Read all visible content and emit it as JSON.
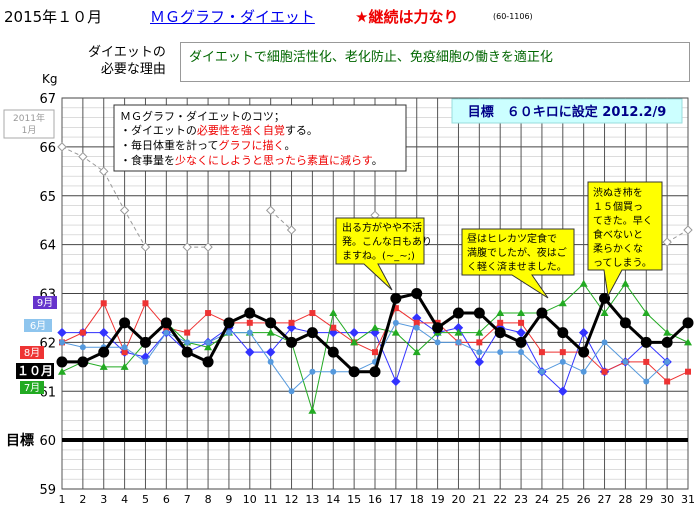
{
  "header": {
    "month_title": "2015年１０月",
    "chart_title": "ＭＧグラフ・ダイエット",
    "motto": "★継続は力なり",
    "code": "(60-1106)"
  },
  "reason": {
    "label_line1": "ダイエットの",
    "label_line2": "必要な理由",
    "text": "ダイエットで細胞活性化、老化防止、免疫細胞の働きを適正化"
  },
  "tips": {
    "title": "ＭＧグラフ・ダイエットのコツ；",
    "line1_pre": "・ダイエットの",
    "line1_em": "必要性を強く自覚",
    "line1_post": "する。",
    "line2_pre": "・毎日体重を計って",
    "line2_em": "グラフに描く",
    "line2_post": "。",
    "line3_pre": "・食事量を",
    "line3_em": "少なくにしようと思ったら素直に減らす",
    "line3_post": "。"
  },
  "goal_banner": "目標　６０キロに設定 2012.2/9",
  "callouts": [
    {
      "lines": [
        "出る方がやや不活",
        "発。こんな日もあり",
        "ますね。(~_~;)"
      ]
    },
    {
      "lines": [
        "昼はヒレカツ定食で",
        "満腹でしたが、夜はご",
        "く軽く済ませました。"
      ]
    },
    {
      "lines": [
        "渋ぬき柿を",
        "１５個買っ",
        "てきた。早く",
        "食べないと",
        "柔らかくな",
        "ってしまう。"
      ]
    }
  ],
  "colors": {
    "current": "#000000",
    "sep": "#3333ff",
    "aug": "#ee3333",
    "jul": "#22aa22",
    "jun": "#5599dd",
    "ref2011": "#999999",
    "goal_banner_bg": "#ccffff",
    "callout_bg": "#ffff00",
    "tip_em": "#ee0000"
  },
  "chart_data": {
    "type": "line",
    "x": [
      1,
      2,
      3,
      4,
      5,
      6,
      7,
      8,
      9,
      10,
      11,
      12,
      13,
      14,
      15,
      16,
      17,
      18,
      19,
      20,
      21,
      22,
      23,
      24,
      25,
      26,
      27,
      28,
      29,
      30,
      31
    ],
    "xlim": [
      1,
      31
    ],
    "ylim": [
      59,
      67
    ],
    "ylabel": "Kg",
    "yticks": [
      59,
      60,
      61,
      62,
      63,
      64,
      65,
      66,
      67
    ],
    "goal": {
      "label": "目標",
      "value": 60
    },
    "series": [
      {
        "name": "2011年1月",
        "key": "ref2011",
        "values": [
          66.0,
          65.8,
          65.5,
          64.7,
          63.95,
          null,
          63.95,
          63.95,
          null,
          null,
          64.7,
          64.3,
          null,
          null,
          null,
          64.6,
          null,
          null,
          null,
          null,
          null,
          null,
          null,
          null,
          null,
          null,
          null,
          null,
          null,
          64.05,
          64.3
        ]
      },
      {
        "name": "9月",
        "key": "sep",
        "values": [
          62.2,
          62.2,
          62.2,
          61.8,
          61.7,
          62.2,
          61.8,
          62.0,
          62.3,
          61.8,
          61.8,
          62.3,
          62.2,
          62.2,
          62.2,
          62.2,
          61.2,
          62.5,
          62.2,
          62.3,
          61.6,
          62.3,
          62.2,
          61.4,
          61.0,
          62.2,
          61.4,
          61.6,
          62.0,
          61.6,
          null
        ]
      },
      {
        "name": "8月",
        "key": "aug",
        "values": [
          62.0,
          62.2,
          62.8,
          61.8,
          62.8,
          62.3,
          62.2,
          62.6,
          62.4,
          62.4,
          62.4,
          62.4,
          62.6,
          62.3,
          62.0,
          61.8,
          62.7,
          62.4,
          62.4,
          62.0,
          62.0,
          62.4,
          62.4,
          61.8,
          61.8,
          61.8,
          61.4,
          61.6,
          61.6,
          61.2,
          61.4
        ]
      },
      {
        "name": "7月",
        "key": "jul",
        "values": [
          61.4,
          61.6,
          61.5,
          61.5,
          62.0,
          62.4,
          62.0,
          61.9,
          62.2,
          62.2,
          62.2,
          62.0,
          60.6,
          62.6,
          62.0,
          62.3,
          62.2,
          61.8,
          62.2,
          62.2,
          62.2,
          62.6,
          62.6,
          62.6,
          62.8,
          63.2,
          62.6,
          63.2,
          62.6,
          62.2,
          62.0
        ]
      },
      {
        "name": "6月",
        "key": "jun",
        "values": [
          62.0,
          61.9,
          61.9,
          61.9,
          61.6,
          62.2,
          62.0,
          62.0,
          62.2,
          62.2,
          61.6,
          61.0,
          61.4,
          61.4,
          61.4,
          61.6,
          62.4,
          62.3,
          62.0,
          62.0,
          61.8,
          61.8,
          61.8,
          61.4,
          61.6,
          61.4,
          62.0,
          61.6,
          61.2,
          61.6,
          null
        ]
      },
      {
        "name": "１０月",
        "key": "current",
        "values": [
          61.6,
          61.6,
          61.8,
          62.4,
          62.0,
          62.4,
          61.8,
          61.6,
          62.4,
          62.6,
          62.4,
          62.0,
          62.2,
          61.8,
          61.4,
          61.4,
          62.9,
          63.0,
          62.3,
          62.6,
          62.6,
          62.2,
          62.0,
          62.6,
          62.2,
          61.8,
          62.9,
          62.4,
          62.0,
          62.0,
          62.4
        ]
      }
    ]
  }
}
